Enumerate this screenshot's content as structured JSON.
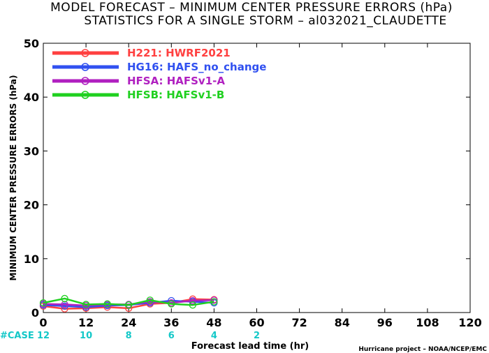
{
  "chart_data": {
    "type": "line",
    "title_line1": "MODEL FORECAST – MINIMUM CENTER PRESSURE ERRORS (hPa)",
    "title_line2": "STATISTICS FOR A SINGLE STORM – al032021_CLAUDETTE",
    "ylabel": "MINIMUM CENTER PRESSURE ERRORS (hPa)",
    "xlabel": "Forecast lead time (hr)",
    "credit": "Hurricane project – NOAA/NCEP/EMC",
    "xlim": [
      0,
      120
    ],
    "ylim": [
      0,
      50
    ],
    "x_ticks": [
      0,
      12,
      24,
      36,
      48,
      60,
      72,
      84,
      96,
      108,
      120
    ],
    "y_ticks": [
      0,
      10,
      20,
      30,
      40,
      50
    ],
    "grid": false,
    "legend_position": "top-left",
    "case_label": "#CASE",
    "case_color": "#14c8c8",
    "cases": [
      {
        "x": 0,
        "n": "12"
      },
      {
        "x": 12,
        "n": "10"
      },
      {
        "x": 24,
        "n": "8"
      },
      {
        "x": 36,
        "n": "6"
      },
      {
        "x": 48,
        "n": "4"
      },
      {
        "x": 60,
        "n": "2"
      }
    ],
    "series": [
      {
        "name": "H221: HWRF2021",
        "color": "#ff4040",
        "x": [
          0,
          6,
          12,
          18,
          24,
          30,
          36,
          42,
          48
        ],
        "values": [
          1.2,
          0.7,
          0.8,
          1.0,
          0.8,
          1.6,
          1.8,
          2.5,
          2.4
        ]
      },
      {
        "name": "HG16: HAFS_no_change",
        "color": "#3050f0",
        "x": [
          0,
          6,
          12,
          18,
          24,
          30,
          36,
          42,
          48
        ],
        "values": [
          1.4,
          1.2,
          1.0,
          1.3,
          1.4,
          1.8,
          2.2,
          2.0,
          1.8
        ]
      },
      {
        "name": "HFSA: HAFSv1-A",
        "color": "#b020c0",
        "x": [
          0,
          6,
          12,
          18,
          24,
          30,
          36,
          42,
          48
        ],
        "values": [
          1.6,
          1.5,
          1.3,
          1.5,
          1.5,
          2.0,
          1.8,
          2.2,
          2.3
        ]
      },
      {
        "name": "HFSB: HAFSv1-B",
        "color": "#20d020",
        "x": [
          0,
          6,
          12,
          18,
          24,
          30,
          36,
          42,
          48
        ],
        "values": [
          1.8,
          2.6,
          1.5,
          1.6,
          1.4,
          2.3,
          1.6,
          1.4,
          2.0
        ]
      }
    ]
  }
}
